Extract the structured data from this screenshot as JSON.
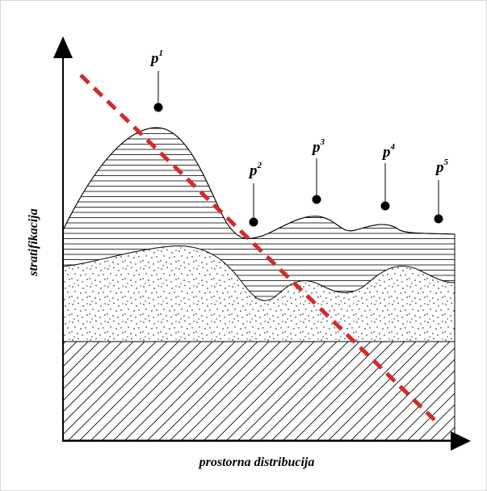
{
  "diagram": {
    "y_axis_label": "stratifikacija",
    "x_axis_label": "prostorna distribucija",
    "points": [
      {
        "label": "p",
        "sup": "1"
      },
      {
        "label": "p",
        "sup": "2"
      },
      {
        "label": "p",
        "sup": "3"
      },
      {
        "label": "p",
        "sup": "4"
      },
      {
        "label": "p",
        "sup": "5"
      }
    ],
    "colors": {
      "trend_line": "#d42a2a",
      "ink": "#000000"
    }
  }
}
